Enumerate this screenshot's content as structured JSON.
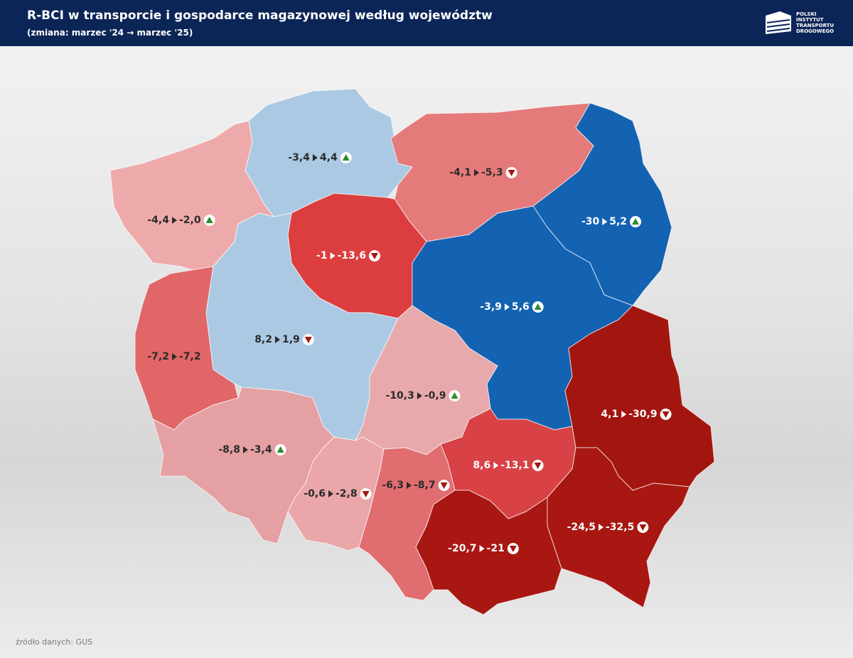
{
  "header": {
    "title": "R-BCI w transporcie i gospodarce magazynowej według województw",
    "subtitle": "(zmiana: marzec '24 → marzec '25)",
    "logo": [
      "POLSKI",
      "INSTYTUT",
      "TRANSPORTU",
      "DROGOWEGO"
    ]
  },
  "regions": [
    {
      "from": "-3,4",
      "to": "4,4",
      "trend": "up",
      "color": "#abc9e3",
      "label_color": "#2b2b2b"
    },
    {
      "from": "-4,1",
      "to": "-5,3",
      "trend": "down",
      "color": "#e57a7b",
      "label_color": "#2b2b2b"
    },
    {
      "from": "-30",
      "to": "5,2",
      "trend": "up",
      "color": "#1462b2",
      "label_color": "#ffffff"
    },
    {
      "from": "-4,4",
      "to": "-2,0",
      "trend": "up",
      "color": "#eeaaab",
      "label_color": "#2b2b2b"
    },
    {
      "from": "-1",
      "to": "-13,6",
      "trend": "down",
      "color": "#dc3e3f",
      "label_color": "#ffffff"
    },
    {
      "from": "-3,9",
      "to": "5,6",
      "trend": "up",
      "color": "#1462b2",
      "label_color": "#ffffff"
    },
    {
      "from": "-7,2",
      "to": "-7,2",
      "trend": "none",
      "color": "#e06668",
      "label_color": "#2b2b2b"
    },
    {
      "from": "8,2",
      "to": "1,9",
      "trend": "down",
      "color": "#abc9e3",
      "label_color": "#2b2b2b"
    },
    {
      "from": "-10,3",
      "to": "-0,9",
      "trend": "up",
      "color": "#e8a9ac",
      "label_color": "#2b2b2b"
    },
    {
      "from": "-8,8",
      "to": "-3,4",
      "trend": "up",
      "color": "#e4a0a2",
      "label_color": "#2b2b2b"
    },
    {
      "from": "-0,6",
      "to": "-2,8",
      "trend": "down",
      "color": "#eaa6a8",
      "label_color": "#2b2b2b"
    },
    {
      "from": "-6,3",
      "to": "-8,7",
      "trend": "down",
      "color": "#e06d70",
      "label_color": "#2b2b2b"
    },
    {
      "from": "8,6",
      "to": "-13,1",
      "trend": "down",
      "color": "#d84145",
      "label_color": "#ffffff"
    },
    {
      "from": "4,1",
      "to": "-30,9",
      "trend": "down",
      "color": "#a3160f",
      "label_color": "#ffffff"
    },
    {
      "from": "-20,7",
      "to": "-21",
      "trend": "down",
      "color": "#a81712",
      "label_color": "#ffffff"
    },
    {
      "from": "-24,5",
      "to": "-32,5",
      "trend": "down",
      "color": "#a81712",
      "label_color": "#ffffff"
    }
  ],
  "source": "źródło danych: GUS"
}
